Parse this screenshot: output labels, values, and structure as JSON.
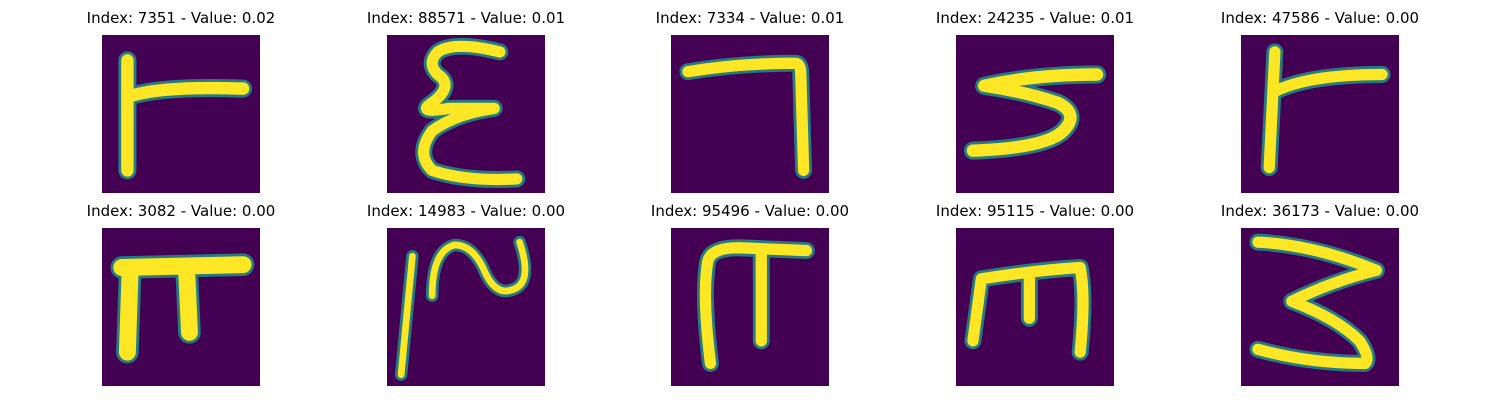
{
  "colors": {
    "background": "#440154",
    "stroke": "#fde725",
    "halo": "#21918c"
  },
  "panels": [
    {
      "title": "Index: 7351 - Value: 0.02",
      "glyph": "glyph-r-shape"
    },
    {
      "title": "Index: 88571 - Value: 0.01",
      "glyph": "glyph-sigma-shape"
    },
    {
      "title": "Index: 7334 - Value: 0.01",
      "glyph": "glyph-hook-shape"
    },
    {
      "title": "Index: 24235 - Value: 0.01",
      "glyph": "glyph-s-shape"
    },
    {
      "title": "Index: 47586 - Value: 0.00",
      "glyph": "glyph-r-shape"
    },
    {
      "title": "Index: 3082 - Value: 0.00",
      "glyph": "glyph-pi-shape"
    },
    {
      "title": "Index: 14983 - Value: 0.00",
      "glyph": "glyph-wave-shape"
    },
    {
      "title": "Index: 95496 - Value: 0.00",
      "glyph": "glyph-pi-shape"
    },
    {
      "title": "Index: 95115 - Value: 0.00",
      "glyph": "glyph-m-shape"
    },
    {
      "title": "Index: 36173 - Value: 0.00",
      "glyph": "glyph-three-shape"
    }
  ]
}
